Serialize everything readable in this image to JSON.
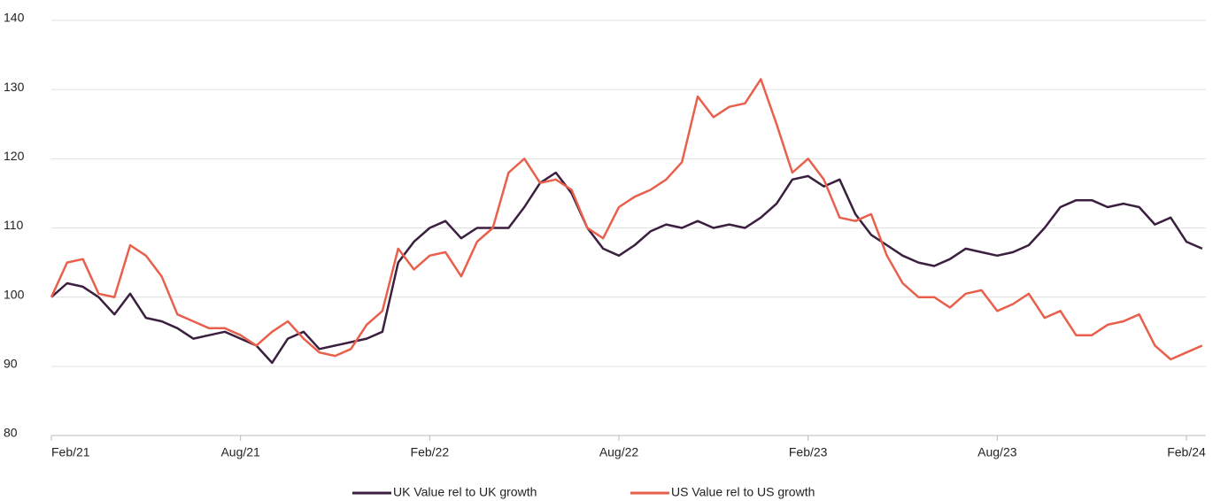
{
  "chart_data": {
    "type": "line",
    "categories": [
      "Feb/21",
      null,
      null,
      null,
      null,
      null,
      null,
      null,
      null,
      null,
      null,
      null,
      "Aug/21",
      null,
      null,
      null,
      null,
      null,
      null,
      null,
      null,
      null,
      null,
      null,
      "Feb/22",
      null,
      null,
      null,
      null,
      null,
      null,
      null,
      null,
      null,
      null,
      null,
      "Aug/22",
      null,
      null,
      null,
      null,
      null,
      null,
      null,
      null,
      null,
      null,
      null,
      "Feb/23",
      null,
      null,
      null,
      null,
      null,
      null,
      null,
      null,
      null,
      null,
      null,
      "Aug/23",
      null,
      null,
      null,
      null,
      null,
      null,
      null,
      null,
      null,
      null,
      null,
      "Feb/24",
      null
    ],
    "series": [
      {
        "name": "UK Value rel to UK growth",
        "color": "#3b1f3f",
        "values": [
          100,
          102,
          101.5,
          100,
          97.5,
          100.5,
          97,
          96.5,
          95.5,
          94,
          94.5,
          95,
          94,
          93,
          90.5,
          94,
          95,
          92.5,
          93,
          93.5,
          94,
          95,
          105,
          108,
          110,
          111,
          108.5,
          110,
          110,
          110,
          113,
          116.5,
          118,
          115,
          110,
          107,
          106,
          107.5,
          109.5,
          110.5,
          110,
          111,
          110,
          110.5,
          110,
          111.5,
          113.5,
          117,
          117.5,
          116,
          117,
          112,
          109,
          107.5,
          106,
          105,
          104.5,
          105.5,
          107,
          106.5,
          106,
          106.5,
          107.5,
          110,
          113,
          114,
          114,
          113,
          113.5,
          113,
          110.5,
          111.5,
          108,
          107
        ]
      },
      {
        "name": "US Value rel to US growth",
        "color": "#e8604c",
        "values": [
          100,
          105,
          105.5,
          100.5,
          100,
          107.5,
          106,
          103,
          97.5,
          96.5,
          95.5,
          95.5,
          94.5,
          93,
          95,
          96.5,
          94,
          92,
          91.5,
          92.5,
          96,
          98,
          107,
          104,
          106,
          106.5,
          103,
          108,
          110,
          118,
          120,
          116.5,
          117,
          115.5,
          110,
          108.5,
          113,
          114.5,
          115.5,
          117,
          119.5,
          129,
          126,
          127.5,
          128,
          131.5,
          125,
          118,
          120,
          117,
          111.5,
          111,
          112,
          106,
          102,
          100,
          100,
          98.5,
          100.5,
          101,
          98,
          99,
          100.5,
          97,
          98,
          94.5,
          94.5,
          96,
          96.5,
          97.5,
          93,
          91,
          92,
          93
        ]
      }
    ],
    "ylim": [
      80,
      140
    ],
    "yticks": [
      80,
      90,
      100,
      110,
      120,
      130,
      140
    ],
    "grid": true,
    "legend": "bottom"
  }
}
